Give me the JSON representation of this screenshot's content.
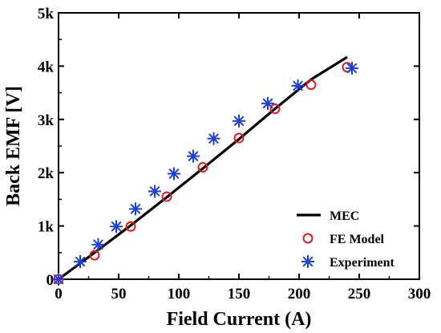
{
  "chart_data": {
    "type": "line",
    "xlabel": "Field Current (A)",
    "ylabel": "Back EMF [V]",
    "xlim": [
      0,
      300
    ],
    "ylim": [
      0,
      5000
    ],
    "x_ticks": [
      0,
      50,
      100,
      150,
      200,
      250,
      300
    ],
    "y_ticks": [
      0,
      1000,
      2000,
      3000,
      4000,
      5000
    ],
    "x_tick_labels": [
      "0",
      "50",
      "100",
      "150",
      "200",
      "250",
      "300"
    ],
    "y_tick_labels": [
      "0",
      "1k",
      "2k",
      "3k",
      "4k",
      "5k"
    ],
    "grid": false,
    "legend_position": "bottom-right",
    "series": [
      {
        "name": "MEC",
        "style": "line",
        "color": "#000000",
        "x": [
          0,
          30,
          60,
          90,
          120,
          150,
          180,
          210,
          240
        ],
        "y": [
          0,
          500,
          1010,
          1540,
          2080,
          2630,
          3200,
          3750,
          4170
        ]
      },
      {
        "name": "FE Model",
        "style": "circle",
        "color": "#e31a1c",
        "x": [
          0,
          30,
          60,
          90,
          120,
          150,
          180,
          210,
          240
        ],
        "y": [
          0,
          450,
          990,
          1550,
          2100,
          2650,
          3200,
          3650,
          3980
        ]
      },
      {
        "name": "Experiment",
        "style": "asterisk",
        "color": "#1f3fd6",
        "x": [
          0,
          18,
          33,
          48,
          64,
          80,
          96,
          112,
          129,
          150,
          174,
          199,
          244
        ],
        "y": [
          0,
          330,
          650,
          990,
          1320,
          1650,
          1980,
          2310,
          2640,
          2970,
          3300,
          3630,
          3960
        ]
      }
    ]
  }
}
